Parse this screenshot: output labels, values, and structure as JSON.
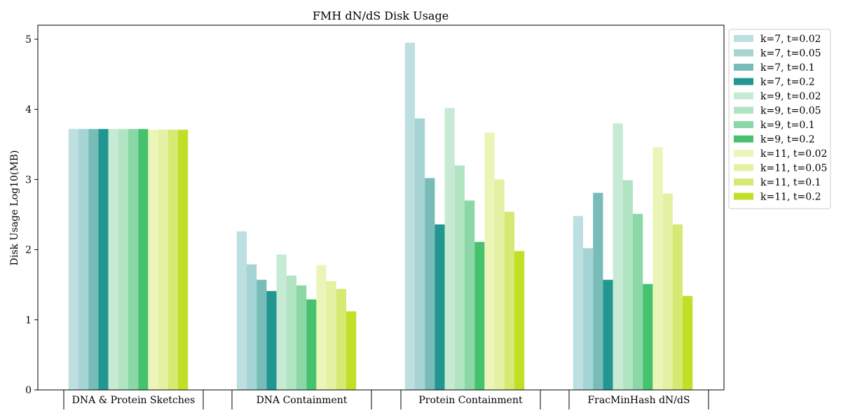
{
  "chart_data": {
    "type": "bar",
    "title": "FMH dN/dS Disk Usage",
    "xlabel": "",
    "ylabel": "Disk Usage Log10(MB)",
    "ylim": [
      0,
      5.2
    ],
    "yticks": [
      0,
      1,
      2,
      3,
      4,
      5
    ],
    "grid": false,
    "legend_position": "outside-right",
    "categories": [
      "DNA & Protein Sketches",
      "DNA Containment",
      "Protein Containment",
      "FracMinHash dN/dS"
    ],
    "series": [
      {
        "name": "k=7, t=0.02",
        "color": "#bddfdf",
        "values": [
          3.72,
          2.26,
          4.95,
          2.48
        ]
      },
      {
        "name": "k=7, t=0.05",
        "color": "#a6d3d3",
        "values": [
          3.72,
          1.79,
          3.87,
          2.02
        ]
      },
      {
        "name": "k=7, t=0.1",
        "color": "#77bcb8",
        "values": [
          3.72,
          1.57,
          3.02,
          2.81
        ]
      },
      {
        "name": "k=7, t=0.2",
        "color": "#229690",
        "values": [
          3.72,
          1.41,
          2.36,
          1.57
        ]
      },
      {
        "name": "k=9, t=0.02",
        "color": "#c6ead3",
        "values": [
          3.72,
          1.93,
          4.02,
          3.8
        ]
      },
      {
        "name": "k=9, t=0.05",
        "color": "#b1e4c3",
        "values": [
          3.72,
          1.63,
          3.2,
          2.99
        ]
      },
      {
        "name": "k=9, t=0.1",
        "color": "#8bd7a6",
        "values": [
          3.72,
          1.49,
          2.7,
          2.51
        ]
      },
      {
        "name": "k=9, t=0.2",
        "color": "#46c26f",
        "values": [
          3.72,
          1.29,
          2.11,
          1.51
        ]
      },
      {
        "name": "k=11, t=0.02",
        "color": "#ecf5b8",
        "values": [
          3.71,
          1.78,
          3.67,
          3.46
        ]
      },
      {
        "name": "k=11, t=0.05",
        "color": "#e2f1a2",
        "values": [
          3.71,
          1.55,
          3.0,
          2.8
        ]
      },
      {
        "name": "k=11, t=0.1",
        "color": "#d5e973",
        "values": [
          3.71,
          1.44,
          2.54,
          2.36
        ]
      },
      {
        "name": "k=11, t=0.2",
        "color": "#c1df27",
        "values": [
          3.71,
          1.12,
          1.98,
          1.34
        ]
      }
    ]
  }
}
